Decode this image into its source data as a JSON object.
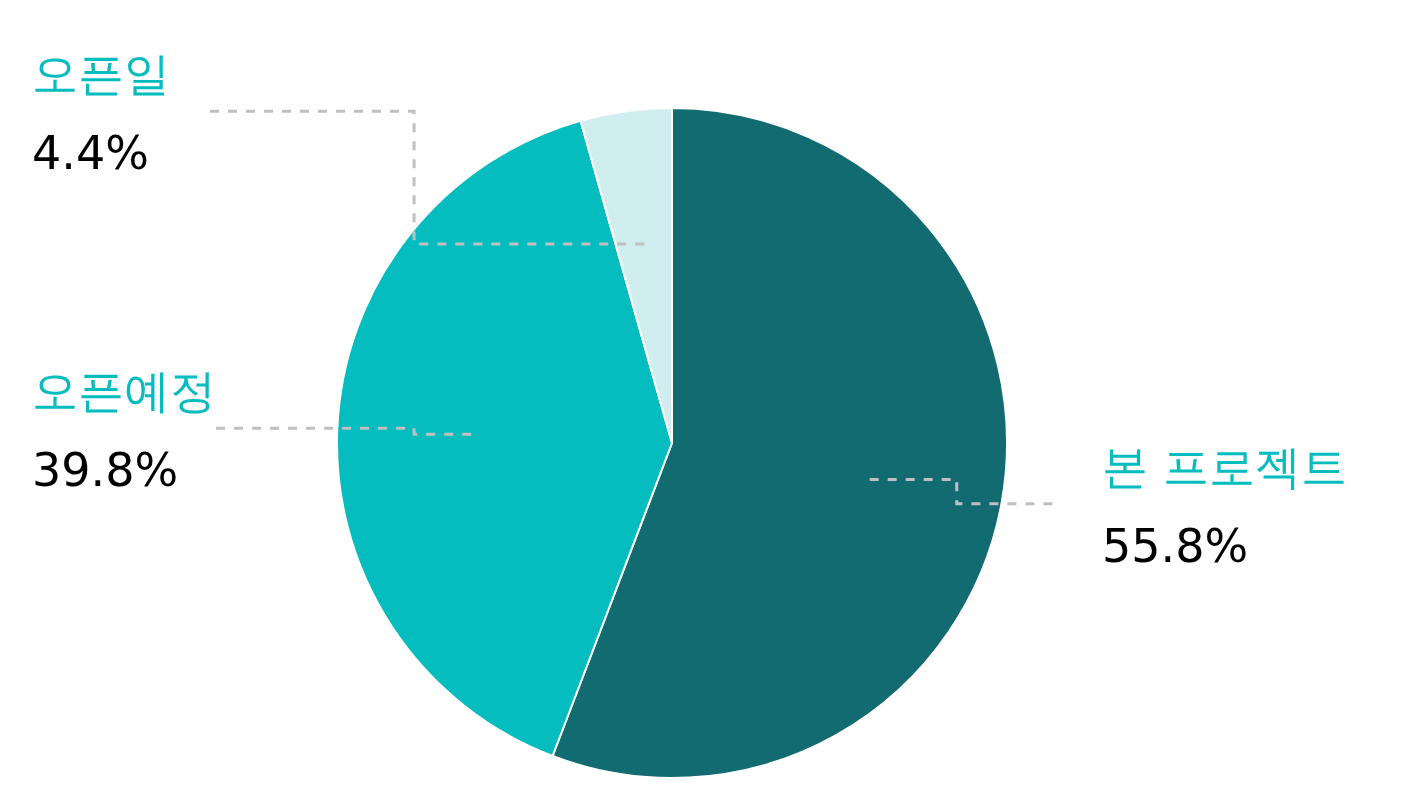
{
  "chart_data": {
    "type": "pie",
    "categories": [
      "본 프로젝트",
      "오픈예정",
      "오픈일"
    ],
    "values": [
      55.8,
      39.8,
      4.4
    ],
    "value_labels": [
      "55.8%",
      "39.8%",
      "4.4%"
    ],
    "colors": [
      "#136b72",
      "#05bcbf",
      "#d0edf0"
    ],
    "legend": false
  }
}
